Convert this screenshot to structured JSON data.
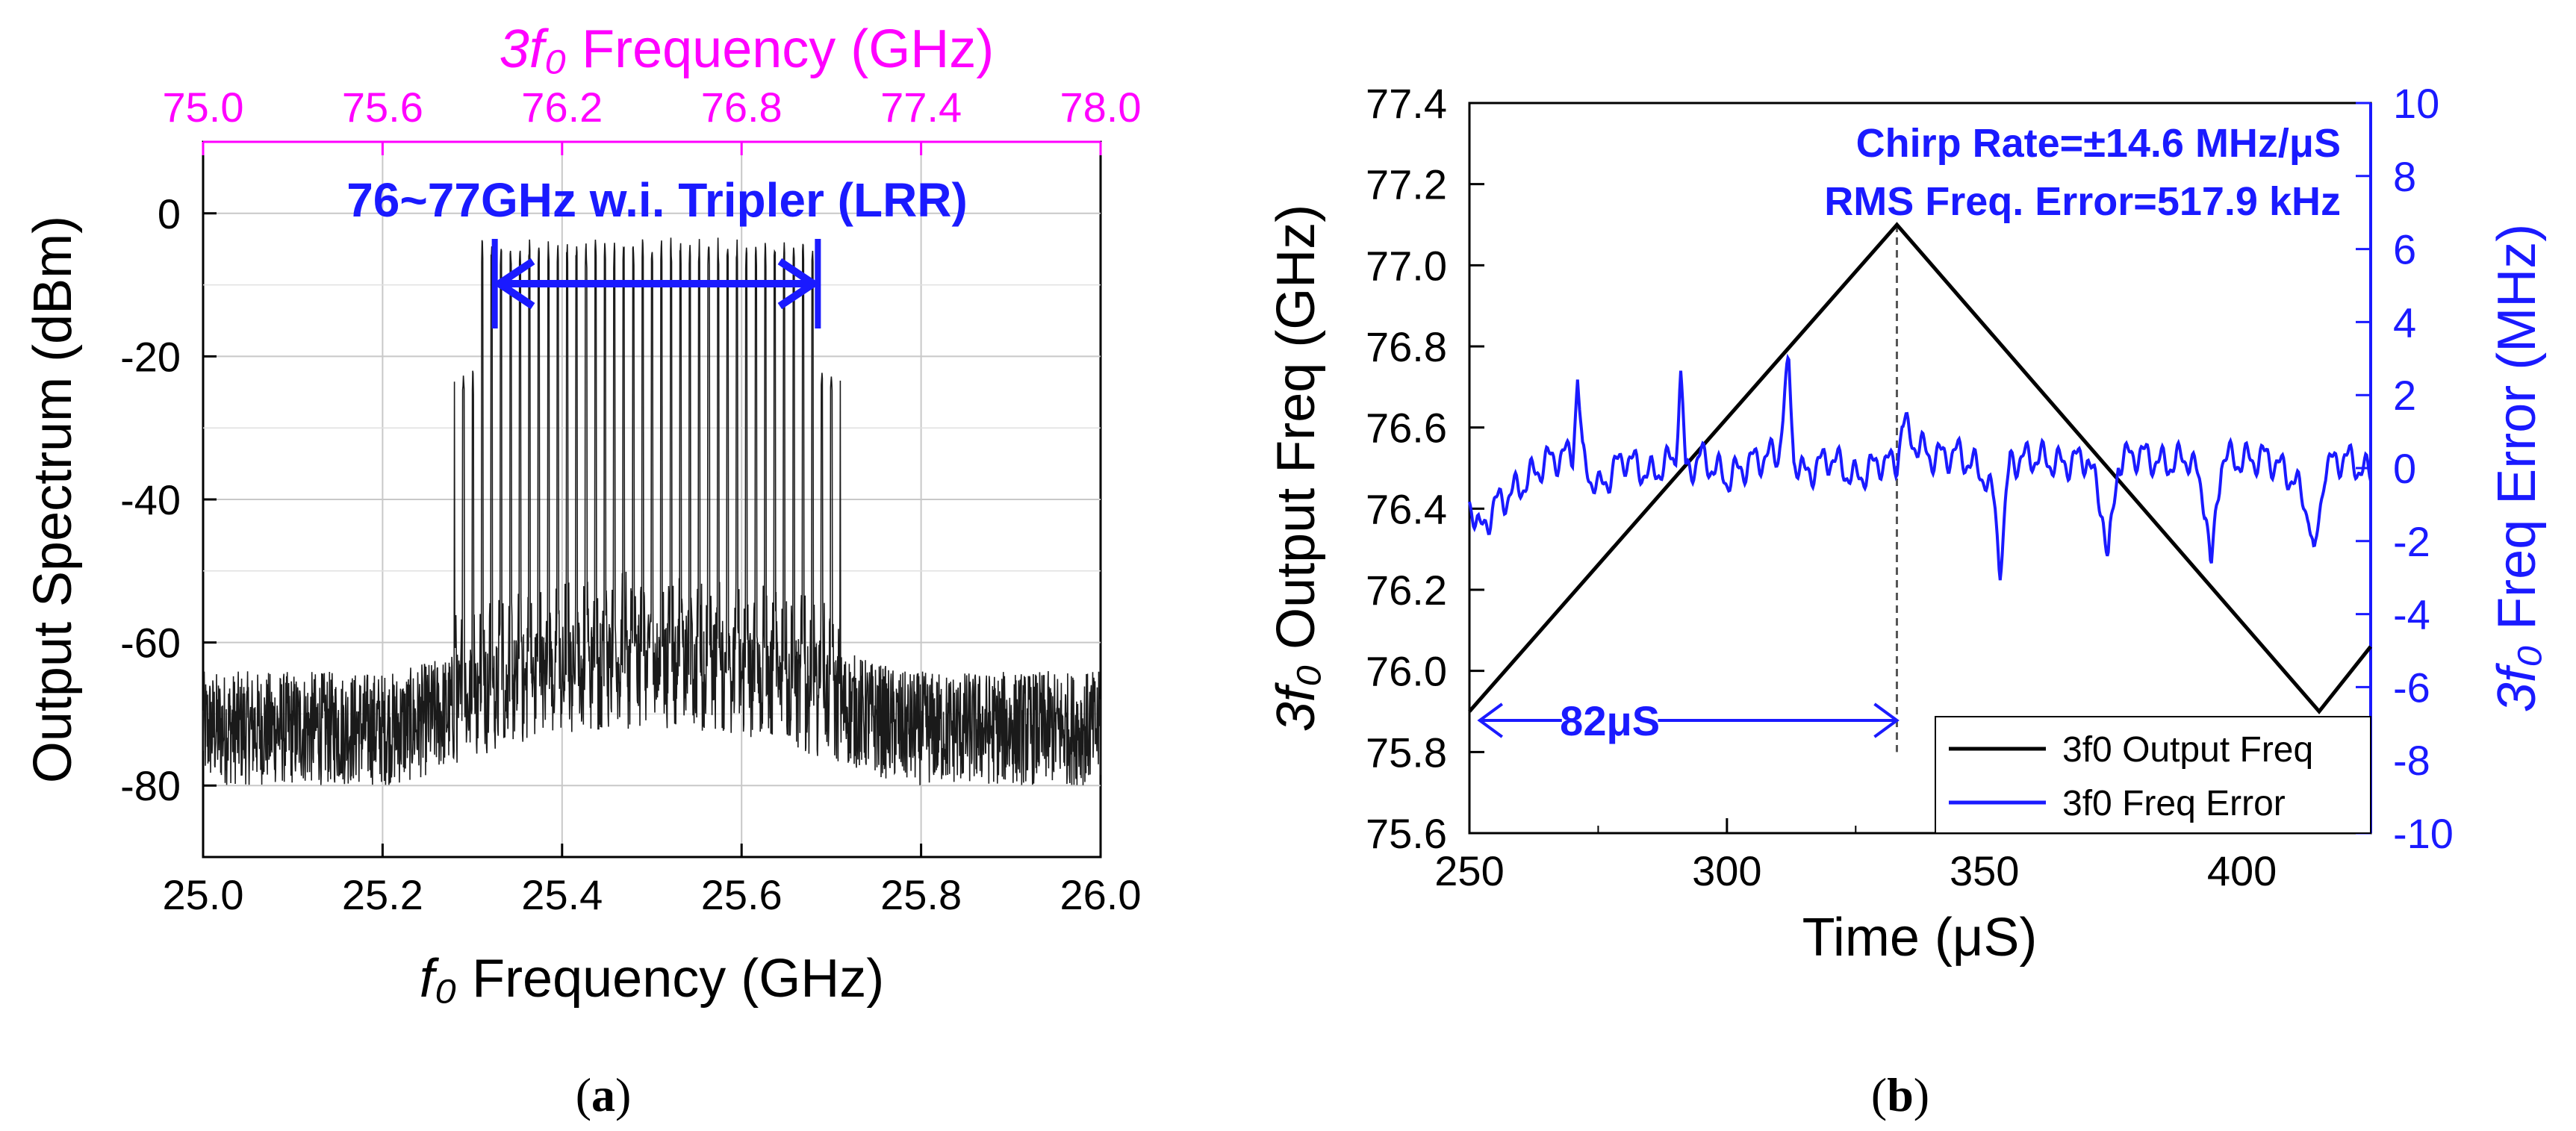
{
  "chart_data": [
    {
      "panel": "a",
      "type": "line",
      "caption": "(a)",
      "title": "",
      "xlabel": "f₀ Frequency (GHz)",
      "xlabel_italic_part": "f₀",
      "xlabel_rest": " Frequency (GHz)",
      "ylabel": "Output Spectrum (dBm)",
      "top_xlabel_italic_part": "3f₀",
      "top_xlabel_rest": " Frequency (GHz)",
      "xlim": [
        25.0,
        26.0
      ],
      "ylim": [
        -90,
        10
      ],
      "xticks": [
        "25.0",
        "25.2",
        "25.4",
        "25.6",
        "25.8",
        "26.0"
      ],
      "yticks": [
        "0",
        "-20",
        "-40",
        "-60",
        "-80"
      ],
      "top_xticks": [
        "75.0",
        "75.6",
        "76.2",
        "76.8",
        "77.4",
        "78.0"
      ],
      "top_xlim": [
        75.0,
        78.0
      ],
      "annotation": "76~77GHz w.i. Tripler (LRR)",
      "arrow_range": [
        25.33,
        25.68
      ],
      "series": [
        {
          "name": "Output Spectrum",
          "noise_floor_dbm": -72,
          "noise_span_dbm": [
            -80,
            -64
          ],
          "comb_region": [
            25.29,
            25.7
          ],
          "comb_peak_dbm": -3,
          "comb_count": 40
        }
      ],
      "colors": {
        "trace": "#1a1a1a",
        "top_axis": "#ff00ff",
        "annotation": "#1a1aff"
      }
    },
    {
      "panel": "b",
      "type": "line",
      "caption": "(b)",
      "xlabel": "Time (μS)",
      "ylabel_italic_part": "3f₀",
      "ylabel_rest": " Output Freq (GHz)",
      "y2label_italic_part": "3f₀",
      "y2label_rest": " Freq Error (MHz)",
      "xlim": [
        250,
        425
      ],
      "ylim": [
        75.6,
        77.4
      ],
      "y2lim": [
        -10,
        10
      ],
      "xticks": [
        "250",
        "300",
        "350",
        "400"
      ],
      "yticks": [
        "77.4",
        "77.2",
        "77.0",
        "76.8",
        "76.6",
        "76.4",
        "76.2",
        "76.0",
        "75.8",
        "75.6"
      ],
      "y2ticks": [
        "10",
        "8",
        "6",
        "4",
        "2",
        "0",
        "-2",
        "-4",
        "-6",
        "-8",
        "-10"
      ],
      "annotations": [
        "Chirp Rate=±14.6 MHz/μS",
        "RMS Freq. Error=517.9 kHz"
      ],
      "span_label": "82μS",
      "span_range": [
        252,
        333
      ],
      "dashed_line_x": 333,
      "legend": [
        "3f0 Output Freq",
        "3f0 Freq Error"
      ],
      "series": [
        {
          "name": "3f0 Output Freq",
          "axis": "left",
          "x": [
            250,
            333,
            415,
            425
          ],
          "y": [
            75.9,
            77.1,
            75.9,
            76.06
          ]
        },
        {
          "name": "3f0 Freq Error",
          "axis": "right",
          "x": [
            250,
            252,
            255,
            260,
            265,
            270,
            271,
            272,
            275,
            280,
            285,
            290,
            291,
            292,
            295,
            300,
            305,
            310,
            312,
            313,
            315,
            320,
            325,
            330,
            332,
            333,
            334,
            337,
            340,
            345,
            350,
            352,
            353,
            355,
            360,
            365,
            370,
            373,
            374,
            376,
            380,
            385,
            390,
            393,
            394,
            396,
            400,
            405,
            410,
            413,
            414,
            416,
            420,
            425
          ],
          "y": [
            -0.8,
            -1.8,
            -1.0,
            -0.5,
            0.2,
            0.4,
            2.5,
            0.2,
            -0.6,
            0.3,
            -0.2,
            0.3,
            2.6,
            -0.1,
            0.3,
            -0.3,
            0.2,
            0.4,
            2.8,
            0.3,
            -0.2,
            0.3,
            -0.3,
            0.2,
            0.1,
            0.2,
            1.2,
            0.6,
            0.3,
            0.4,
            -0.2,
            -1.0,
            -2.7,
            0.2,
            0.3,
            0.1,
            0.3,
            -1.2,
            -2.6,
            0.2,
            0.4,
            0.1,
            0.3,
            -1.0,
            -2.9,
            0.3,
            0.2,
            0.3,
            -0.3,
            -1.2,
            -2.7,
            0.0,
            0.3,
            -0.2
          ]
        }
      ],
      "colors": {
        "freq": "#000000",
        "error": "#1a1aff",
        "right_axis": "#1a1aff",
        "annotation": "#1a1aff"
      }
    }
  ]
}
